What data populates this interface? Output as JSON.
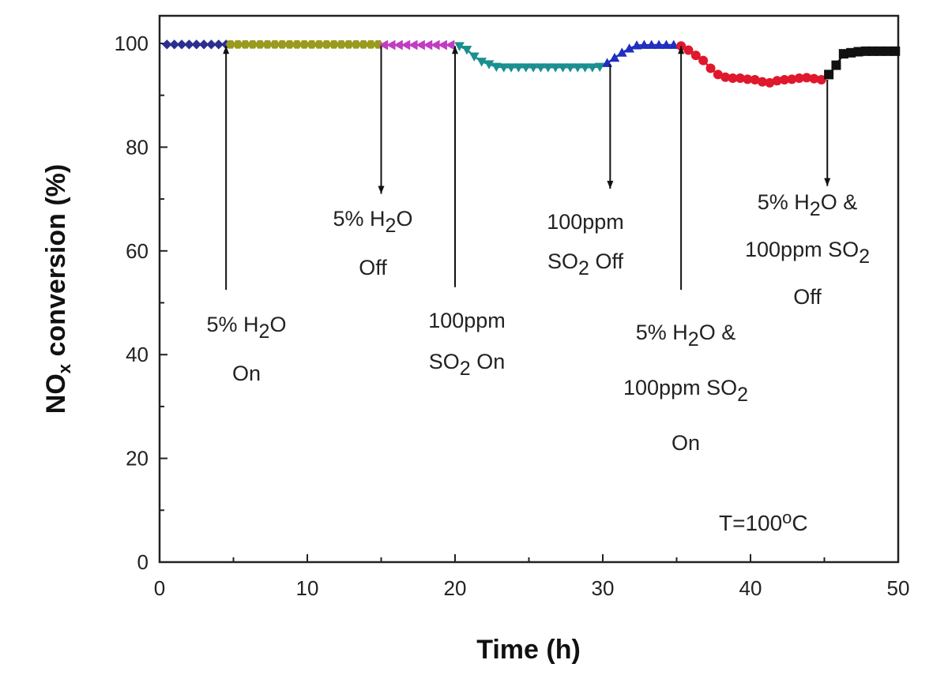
{
  "chart_data": {
    "type": "scatter",
    "xlabel": "Time (h)",
    "ylabel_main": "NO",
    "ylabel_sub": "x",
    "ylabel_rest": " conversion (%)",
    "xlim": [
      0,
      50
    ],
    "ylim": [
      0,
      105
    ],
    "xticks": [
      0,
      10,
      20,
      30,
      40,
      50
    ],
    "yticks": [
      0,
      20,
      40,
      60,
      80,
      100
    ],
    "grid": false,
    "legend": "none",
    "series": [
      {
        "color": "#2b2f8f",
        "marker": "diamond",
        "x": [
          0.5,
          1.0,
          1.5,
          2.0,
          2.5,
          3.0,
          3.5,
          4.0,
          4.5
        ],
        "y": [
          99.8,
          99.8,
          99.8,
          99.8,
          99.8,
          99.8,
          99.8,
          99.8,
          99.8
        ]
      },
      {
        "color": "#9a9a1e",
        "marker": "hexagon",
        "x": [
          4.8,
          5.3,
          5.8,
          6.3,
          6.8,
          7.3,
          7.8,
          8.3,
          8.8,
          9.3,
          9.8,
          10.3,
          10.8,
          11.3,
          11.8,
          12.3,
          12.8,
          13.3,
          13.8,
          14.3,
          14.8
        ],
        "y": [
          99.8,
          99.8,
          99.8,
          99.8,
          99.8,
          99.8,
          99.8,
          99.8,
          99.8,
          99.8,
          99.8,
          99.8,
          99.8,
          99.8,
          99.8,
          99.8,
          99.8,
          99.8,
          99.8,
          99.8,
          99.8
        ]
      },
      {
        "color": "#c23cc2",
        "marker": "triangle-left",
        "x": [
          15.2,
          15.7,
          16.2,
          16.7,
          17.2,
          17.7,
          18.2,
          18.7,
          19.2,
          19.7
        ],
        "y": [
          99.7,
          99.7,
          99.7,
          99.7,
          99.7,
          99.7,
          99.7,
          99.7,
          99.7,
          99.7
        ]
      },
      {
        "color": "#1a8f8f",
        "marker": "triangle-down",
        "x": [
          20.3,
          20.8,
          21.3,
          21.8,
          22.3,
          22.8,
          23.3,
          23.8,
          24.3,
          24.8,
          25.3,
          25.8,
          26.3,
          26.8,
          27.3,
          27.8,
          28.3,
          28.8,
          29.3,
          29.8
        ],
        "y": [
          99.5,
          98.8,
          97.5,
          96.5,
          96.0,
          95.5,
          95.4,
          95.4,
          95.4,
          95.4,
          95.4,
          95.4,
          95.4,
          95.4,
          95.4,
          95.4,
          95.4,
          95.4,
          95.4,
          95.5
        ]
      },
      {
        "color": "#1f2fbf",
        "marker": "triangle-up",
        "x": [
          30.3,
          30.8,
          31.3,
          31.8,
          32.3,
          32.8,
          33.3,
          33.8,
          34.3,
          34.8
        ],
        "y": [
          96.2,
          97.2,
          98.2,
          99.0,
          99.6,
          99.7,
          99.7,
          99.7,
          99.7,
          99.7
        ]
      },
      {
        "color": "#e0182d",
        "marker": "circle",
        "x": [
          35.3,
          35.8,
          36.3,
          36.8,
          37.3,
          37.8,
          38.3,
          38.8,
          39.3,
          39.8,
          40.3,
          40.8,
          41.3,
          41.8,
          42.3,
          42.8,
          43.3,
          43.8,
          44.3,
          44.8
        ],
        "y": [
          99.5,
          98.7,
          97.7,
          96.7,
          95.2,
          94.0,
          93.5,
          93.3,
          93.3,
          93.1,
          93.0,
          92.6,
          92.4,
          92.8,
          93.0,
          93.1,
          93.3,
          93.4,
          93.2,
          93.0
        ]
      },
      {
        "color": "#111111",
        "marker": "square",
        "x": [
          45.3,
          45.8,
          46.3,
          46.8,
          47.3,
          47.8,
          48.3,
          48.8,
          49.3,
          49.8
        ],
        "y": [
          94.0,
          95.8,
          98.0,
          98.2,
          98.4,
          98.5,
          98.5,
          98.5,
          98.5,
          98.5
        ]
      }
    ],
    "annotations": [
      {
        "x": 4.5,
        "direction": "up",
        "y_from": 52.5,
        "y_to": 99.5,
        "lines": [
          [
            "5% H",
            "2",
            "O"
          ],
          [
            "On"
          ]
        ]
      },
      {
        "x": 15.0,
        "direction": "down",
        "y_from": 99.5,
        "y_to": 71,
        "lines": [
          [
            "5% H",
            "2",
            "O"
          ],
          [
            "Off"
          ]
        ]
      },
      {
        "x": 20.0,
        "direction": "up",
        "y_from": 53,
        "y_to": 99.5,
        "lines": [
          [
            "100ppm"
          ],
          [
            "SO",
            "2",
            " On"
          ]
        ]
      },
      {
        "x": 30.5,
        "direction": "down",
        "y_from": 96,
        "y_to": 72,
        "lines": [
          [
            "100ppm"
          ],
          [
            "SO",
            "2",
            " Off"
          ]
        ]
      },
      {
        "x": 35.3,
        "direction": "up",
        "y_from": 52.5,
        "y_to": 99.5,
        "lines": [
          [
            "5% H",
            "2",
            "O &"
          ],
          [
            "100ppm SO",
            "2"
          ],
          [
            "On"
          ]
        ]
      },
      {
        "x": 45.2,
        "direction": "down",
        "y_from": 93,
        "y_to": 72.5,
        "lines": [
          [
            "5% H",
            "2",
            "O &"
          ],
          [
            "100ppm SO",
            "2"
          ],
          [
            "Off"
          ]
        ]
      }
    ],
    "temperature_label": {
      "main": "T=100",
      "sup": "o",
      "unit": "C"
    }
  }
}
